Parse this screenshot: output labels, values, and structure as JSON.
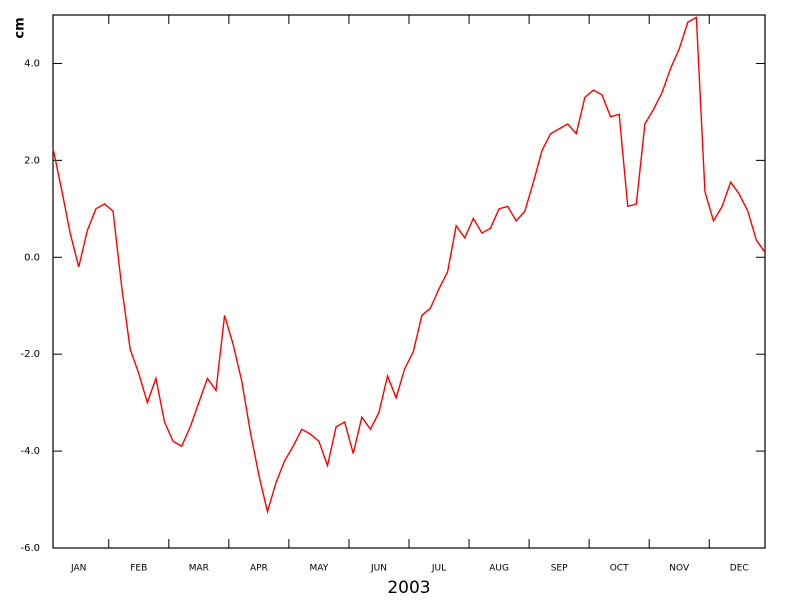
{
  "chart_data": {
    "type": "line",
    "ylabel": "cm",
    "xlabel": "2003",
    "categories": [
      null,
      null,
      null,
      "JAN",
      null,
      null,
      null,
      null,
      null,
      null,
      "FEB",
      null,
      null,
      null,
      null,
      null,
      null,
      "MAR",
      null,
      null,
      null,
      null,
      null,
      null,
      "APR",
      null,
      null,
      null,
      null,
      null,
      null,
      "MAY",
      null,
      null,
      null,
      null,
      null,
      null,
      "JUN",
      null,
      null,
      null,
      null,
      null,
      null,
      "JUL",
      null,
      null,
      null,
      null,
      null,
      null,
      "AUG",
      null,
      null,
      null,
      null,
      null,
      null,
      "SEP",
      null,
      null,
      null,
      null,
      null,
      null,
      "OCT",
      null,
      null,
      null,
      null,
      null,
      null,
      "NOV",
      null,
      null,
      null,
      null,
      null,
      null,
      "DEC",
      null,
      null,
      null
    ],
    "values": [
      2.25,
      1.4,
      0.5,
      -0.2,
      0.55,
      1.0,
      1.1,
      0.95,
      -0.6,
      -1.9,
      -2.4,
      -3.0,
      -2.5,
      -3.4,
      -3.8,
      -3.9,
      -3.5,
      -3.0,
      -2.5,
      -2.75,
      -1.2,
      -1.8,
      -2.55,
      -3.6,
      -4.5,
      -5.25,
      -4.65,
      -4.2,
      -3.9,
      -3.55,
      -3.65,
      -3.8,
      -4.3,
      -3.5,
      -3.4,
      -4.05,
      -3.3,
      -3.55,
      -3.2,
      -2.45,
      -2.9,
      -2.3,
      -1.95,
      -1.2,
      -1.05,
      -0.65,
      -0.3,
      0.65,
      0.4,
      0.8,
      0.5,
      0.6,
      1.0,
      1.05,
      0.75,
      0.95,
      1.55,
      2.2,
      2.55,
      2.65,
      2.75,
      2.55,
      3.3,
      3.45,
      3.35,
      2.9,
      2.95,
      1.05,
      1.1,
      2.75,
      3.05,
      3.4,
      3.9,
      4.3,
      4.85,
      4.95,
      1.35,
      0.75,
      1.05,
      1.55,
      1.3,
      0.95,
      0.35,
      0.1
    ],
    "color": "#ff0000",
    "ylim": [
      -6,
      5
    ],
    "yticks": [
      {
        "value": -6,
        "label": "-6.0"
      },
      {
        "value": -4,
        "label": "-4.0"
      },
      {
        "value": -2,
        "label": "-2.0"
      },
      {
        "value": 0,
        "label": "0.0"
      },
      {
        "value": 2,
        "label": "2.0"
      },
      {
        "value": 4,
        "label": "4.0"
      }
    ]
  }
}
